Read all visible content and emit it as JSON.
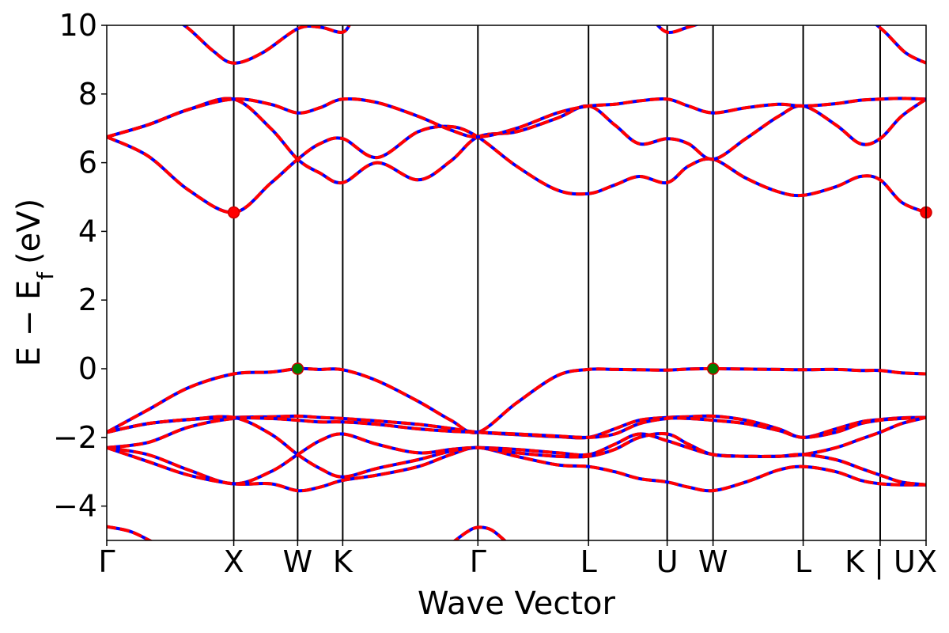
{
  "chart_data": {
    "type": "line",
    "xlabel": "Wave Vector",
    "ylabel_main": "E − E",
    "ylabel_sub": "f",
    "ylabel_unit": "(eV)",
    "ylim": [
      -5,
      10
    ],
    "yticks": [
      -4,
      -2,
      0,
      2,
      4,
      6,
      8,
      10
    ],
    "ytick_labels": [
      "−4",
      "−2",
      "0",
      "2",
      "4",
      "6",
      "8",
      "10"
    ],
    "kpoint_positions": [
      0,
      0.155,
      0.233,
      0.288,
      0.453,
      0.588,
      0.684,
      0.74,
      0.85,
      0.944,
      1.0
    ],
    "kpoint_labels": [
      "Γ",
      "X",
      "W",
      "K",
      "Γ",
      "L",
      "U",
      "W",
      "L",
      "K | U",
      "X"
    ],
    "grid": false,
    "colors": {
      "band_solid": "#0000ff",
      "band_dashed": "#ff0000",
      "extremum": "#008000",
      "cbm_marker": "#ff0000"
    },
    "series": [
      {
        "x": [
          0,
          0.05,
          0.1,
          0.155,
          0.2,
          0.233,
          0.26,
          0.288,
          0.33,
          0.38,
          0.42,
          0.453,
          0.5,
          0.55,
          0.588,
          0.62,
          0.65,
          0.684,
          0.71,
          0.74,
          0.78,
          0.82,
          0.85,
          0.89,
          0.92,
          0.944,
          0.97,
          1.0
        ],
        "y": [
          -1.85,
          -1.2,
          -0.55,
          -0.15,
          -0.1,
          0.0,
          -0.02,
          -0.03,
          -0.35,
          -0.95,
          -1.5,
          -1.85,
          -1.0,
          -0.2,
          -0.02,
          -0.02,
          -0.03,
          -0.04,
          -0.01,
          0.0,
          -0.01,
          -0.02,
          -0.03,
          -0.02,
          -0.05,
          -0.05,
          -0.12,
          -0.15
        ]
      },
      {
        "x": [
          0,
          0.05,
          0.1,
          0.155,
          0.2,
          0.233,
          0.26,
          0.288,
          0.33,
          0.38,
          0.42,
          0.453,
          0.5,
          0.55,
          0.588,
          0.62,
          0.65,
          0.684,
          0.71,
          0.74,
          0.78,
          0.82,
          0.85,
          0.89,
          0.92,
          0.944,
          0.97,
          1.0
        ],
        "y": [
          -1.85,
          -1.6,
          -1.48,
          -1.42,
          -1.4,
          -1.38,
          -1.42,
          -1.45,
          -1.52,
          -1.62,
          -1.74,
          -1.85,
          -1.92,
          -1.98,
          -2.0,
          -1.75,
          -1.5,
          -1.42,
          -1.4,
          -1.38,
          -1.5,
          -1.75,
          -2.0,
          -1.75,
          -1.55,
          -1.48,
          -1.43,
          -1.42
        ]
      },
      {
        "x": [
          0,
          0.05,
          0.1,
          0.155,
          0.2,
          0.233,
          0.26,
          0.288,
          0.33,
          0.38,
          0.42,
          0.453,
          0.5,
          0.55,
          0.588,
          0.62,
          0.65,
          0.684,
          0.71,
          0.74,
          0.78,
          0.82,
          0.85,
          0.89,
          0.92,
          0.944,
          0.97,
          1.0
        ],
        "y": [
          -2.3,
          -2.15,
          -1.7,
          -1.45,
          -1.45,
          -1.5,
          -1.55,
          -1.55,
          -1.62,
          -1.75,
          -1.82,
          -1.85,
          -1.9,
          -1.96,
          -2.0,
          -1.9,
          -1.6,
          -1.45,
          -1.45,
          -1.5,
          -1.6,
          -1.8,
          -2.0,
          -1.85,
          -1.6,
          -1.5,
          -1.45,
          -1.42
        ]
      },
      {
        "x": [
          0,
          0.05,
          0.1,
          0.155,
          0.2,
          0.233,
          0.26,
          0.288,
          0.33,
          0.38,
          0.42,
          0.453,
          0.5,
          0.55,
          0.588,
          0.62,
          0.65,
          0.684,
          0.71,
          0.74,
          0.78,
          0.82,
          0.85,
          0.89,
          0.92,
          0.944,
          0.97,
          1.0
        ],
        "y": [
          -2.3,
          -2.5,
          -2.95,
          -3.35,
          -3.0,
          -2.5,
          -2.1,
          -1.9,
          -2.2,
          -2.45,
          -2.35,
          -2.3,
          -2.35,
          -2.45,
          -2.5,
          -2.2,
          -1.9,
          -2.1,
          -2.3,
          -2.5,
          -2.55,
          -2.55,
          -2.5,
          -2.3,
          -2.05,
          -1.85,
          -1.6,
          -1.42
        ]
      },
      {
        "x": [
          0,
          0.05,
          0.1,
          0.155,
          0.2,
          0.233,
          0.26,
          0.288,
          0.33,
          0.38,
          0.42,
          0.453,
          0.5,
          0.55,
          0.588,
          0.62,
          0.65,
          0.684,
          0.71,
          0.74,
          0.78,
          0.82,
          0.85,
          0.89,
          0.92,
          0.944,
          0.97,
          1.0
        ],
        "y": [
          -2.3,
          -2.7,
          -3.1,
          -3.35,
          -3.35,
          -3.55,
          -3.45,
          -3.25,
          -3.1,
          -2.85,
          -2.5,
          -2.3,
          -2.55,
          -2.8,
          -2.85,
          -3.0,
          -3.2,
          -3.3,
          -3.45,
          -3.55,
          -3.3,
          -2.95,
          -2.85,
          -3.0,
          -3.25,
          -3.35,
          -3.38,
          -3.38
        ]
      },
      {
        "x": [
          0,
          0.05,
          0.1,
          0.155,
          0.2,
          0.233,
          0.26,
          0.288,
          0.33,
          0.38,
          0.42,
          0.453,
          0.5,
          0.55,
          0.588,
          0.62,
          0.65,
          0.684,
          0.71,
          0.74,
          0.78,
          0.82,
          0.85,
          0.89,
          0.92,
          0.944,
          0.97,
          1.0
        ],
        "y": [
          -1.85,
          -1.6,
          -1.48,
          -1.42,
          -1.9,
          -2.5,
          -2.9,
          -3.15,
          -2.9,
          -2.65,
          -2.4,
          -2.3,
          -2.45,
          -2.55,
          -2.55,
          -2.35,
          -2.0,
          -1.9,
          -2.2,
          -2.5,
          -2.55,
          -2.55,
          -2.5,
          -2.65,
          -2.9,
          -3.1,
          -3.3,
          -3.38
        ]
      },
      {
        "x": [
          0,
          0.05,
          0.1,
          0.155,
          0.2,
          0.233,
          0.26,
          0.288,
          0.33,
          0.38,
          0.42,
          0.453,
          0.5,
          0.55,
          0.588,
          0.62,
          0.65,
          0.684,
          0.71,
          0.74,
          0.78,
          0.82,
          0.85,
          0.89,
          0.92,
          0.944,
          0.97,
          1.0
        ],
        "y": [
          6.75,
          6.2,
          5.2,
          4.55,
          5.4,
          6.1,
          6.55,
          6.7,
          6.15,
          6.9,
          7.05,
          6.75,
          5.9,
          5.2,
          5.1,
          5.35,
          5.6,
          5.42,
          5.9,
          6.1,
          5.55,
          5.15,
          5.05,
          5.3,
          5.6,
          5.5,
          4.85,
          4.55
        ]
      },
      {
        "x": [
          0,
          0.05,
          0.1,
          0.155,
          0.2,
          0.233,
          0.26,
          0.288,
          0.33,
          0.38,
          0.42,
          0.453,
          0.5,
          0.55,
          0.588,
          0.62,
          0.65,
          0.684,
          0.71,
          0.74,
          0.78,
          0.82,
          0.85,
          0.89,
          0.92,
          0.944,
          0.97,
          1.0
        ],
        "y": [
          6.75,
          7.1,
          7.55,
          7.85,
          7.0,
          6.1,
          5.7,
          5.42,
          6.0,
          5.5,
          6.05,
          6.75,
          6.9,
          7.3,
          7.65,
          7.1,
          6.55,
          6.7,
          6.55,
          6.1,
          6.7,
          7.35,
          7.65,
          7.1,
          6.55,
          6.7,
          7.35,
          7.85
        ]
      },
      {
        "x": [
          0,
          0.05,
          0.1,
          0.155,
          0.2,
          0.233,
          0.26,
          0.288,
          0.33,
          0.38,
          0.42,
          0.453,
          0.5,
          0.55,
          0.588,
          0.62,
          0.65,
          0.684,
          0.71,
          0.74,
          0.78,
          0.82,
          0.85,
          0.89,
          0.92,
          0.944,
          0.97,
          1.0
        ],
        "y": [
          6.75,
          7.1,
          7.55,
          7.85,
          7.7,
          7.45,
          7.6,
          7.85,
          7.75,
          7.35,
          6.95,
          6.75,
          7.0,
          7.45,
          7.65,
          7.7,
          7.8,
          7.85,
          7.65,
          7.45,
          7.6,
          7.7,
          7.65,
          7.72,
          7.82,
          7.85,
          7.87,
          7.85
        ]
      },
      {
        "x": [
          0.07,
          0.1,
          0.13,
          0.155,
          0.19,
          0.233,
          0.26,
          0.288,
          0.3
        ],
        "y": [
          10.4,
          9.9,
          9.25,
          8.9,
          9.2,
          9.9,
          9.95,
          9.8,
          10.2
        ]
      },
      {
        "x": [
          0.665,
          0.684,
          0.71,
          0.73
        ],
        "y": [
          10.2,
          9.8,
          9.95,
          10.1
        ]
      },
      {
        "x": [
          0.93,
          0.95,
          0.975,
          1.0
        ],
        "y": [
          10.2,
          9.8,
          9.2,
          8.9
        ]
      },
      {
        "x": [
          0,
          0.03,
          0.06
        ],
        "y": [
          -4.6,
          -4.75,
          -5.1
        ]
      },
      {
        "x": [
          0.42,
          0.44,
          0.453,
          0.47,
          0.49
        ],
        "y": [
          -5.1,
          -4.75,
          -4.62,
          -4.7,
          -5.1
        ]
      }
    ],
    "extrema": [
      {
        "label": "VBM",
        "x": 0.233,
        "y": 0.0
      },
      {
        "label": "VBM",
        "x": 0.74,
        "y": 0.0
      },
      {
        "label": "CBM",
        "x": 0.155,
        "y": 4.55
      },
      {
        "label": "CBM",
        "x": 1.0,
        "y": 4.55
      }
    ]
  }
}
